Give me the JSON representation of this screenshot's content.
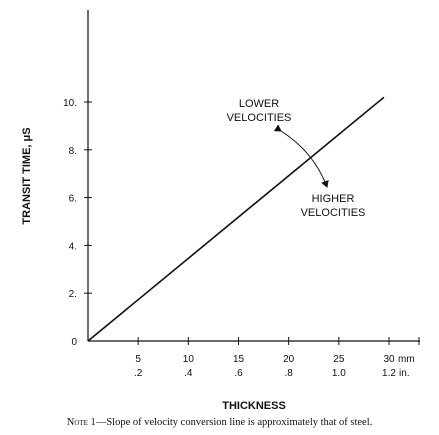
{
  "chart_data": {
    "type": "line",
    "title": "",
    "ylabel": "TRANSIT TIME, μS",
    "xlabel": "THICKNESS",
    "xlim": [
      0,
      30
    ],
    "ylim": [
      0,
      10
    ],
    "y_ticks": [
      {
        "value": 0,
        "label": "0"
      },
      {
        "value": 2,
        "label": "2."
      },
      {
        "value": 4,
        "label": "4."
      },
      {
        "value": 6,
        "label": "6."
      },
      {
        "value": 8,
        "label": "8."
      },
      {
        "value": 10,
        "label": "10."
      }
    ],
    "x_ticks": [
      {
        "value": 5,
        "mm": "5",
        "in": ".2"
      },
      {
        "value": 10,
        "mm": "10",
        "in": ".4"
      },
      {
        "value": 15,
        "mm": "15",
        "in": ".6"
      },
      {
        "value": 20,
        "mm": "20",
        "in": ".8"
      },
      {
        "value": 25,
        "mm": "25",
        "in": "1.0"
      },
      {
        "value": 30,
        "mm": "30",
        "in": "1.2"
      }
    ],
    "x_unit_mm": "mm",
    "x_unit_in": "in.",
    "series": [
      {
        "x": [
          0,
          29.5
        ],
        "y": [
          0,
          10.2
        ]
      }
    ],
    "annotations": {
      "lower": [
        "LOWER",
        "VELOCITIES"
      ],
      "higher": [
        "HIGHER",
        "VELOCITIES"
      ]
    },
    "grid": false
  },
  "note": {
    "label": "Note 1",
    "text": "—Slope of velocity conversion line is approximately that of steel."
  },
  "colors": {
    "ink": "#111111",
    "background": "#ffffff"
  }
}
